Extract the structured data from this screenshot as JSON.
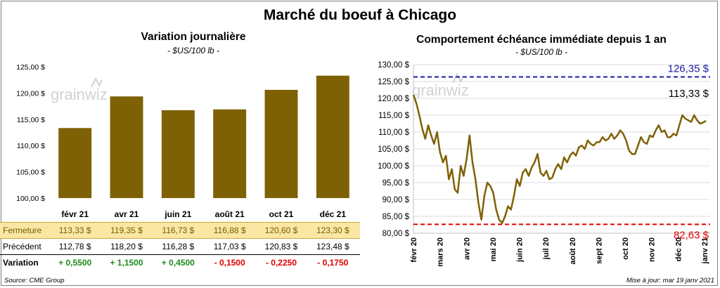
{
  "title": "Marché du boeuf à Chicago",
  "watermark": "grainwiz",
  "colors": {
    "bar": "#7e6105",
    "line": "#7e6105",
    "high": "#1a1aa8",
    "low": "#e00000",
    "up": "#1d8a1d",
    "down": "#e00000"
  },
  "left": {
    "title": "Variation journalière",
    "subtitle": "- $US/100 lb -"
  },
  "right": {
    "title": "Comportement échéance immédiate depuis 1 an",
    "subtitle": "- $US/100 lb -"
  },
  "table": {
    "rows": [
      {
        "label": "Fermeture",
        "cells": [
          "113,33  $",
          "119,35  $",
          "116,73  $",
          "116,88  $",
          "120,60  $",
          "123,30  $"
        ]
      },
      {
        "label": "Précédent",
        "cells": [
          "112,78  $",
          "118,20  $",
          "116,28  $",
          "117,03  $",
          "120,83  $",
          "123,48  $"
        ]
      },
      {
        "label": "Variation",
        "cells": [
          "+ 0,5500",
          "+ 1,1500",
          "+ 0,4500",
          "- 0,1500",
          "- 0,2250",
          "- 0,1750"
        ]
      }
    ]
  },
  "footer": {
    "source": "Source: CME Group",
    "updated": "Mise à jour: mar 19 janv 2021"
  },
  "chart_data": [
    {
      "type": "bar",
      "title": "Variation journalière",
      "subtitle": "- $US/100 lb -",
      "categories": [
        "févr 21",
        "avr 21",
        "juin 21",
        "août 21",
        "oct 21",
        "déc 21"
      ],
      "values": [
        113.33,
        119.35,
        116.73,
        116.88,
        120.6,
        123.3
      ],
      "ylim": [
        100,
        125
      ],
      "yticks": [
        "100,00 $",
        "105,00 $",
        "110,00 $",
        "115,00 $",
        "120,00 $",
        "125,00 $"
      ],
      "grid": false
    },
    {
      "type": "line",
      "title": "Comportement échéance immédiate depuis 1 an",
      "subtitle": "- $US/100 lb -",
      "xlabels": [
        "févr 20",
        "mars 20",
        "avr 20",
        "mai 20",
        "juin 20",
        "juil 20",
        "août 20",
        "sept 20",
        "oct 20",
        "nov 20",
        "déc 20",
        "janv 21"
      ],
      "ylim": [
        80,
        130
      ],
      "yticks": [
        "80,00 $",
        "85,00 $",
        "90,00 $",
        "95,00 $",
        "100,00 $",
        "105,00 $",
        "110,00 $",
        "115,00 $",
        "120,00 $",
        "125,00 $",
        "130,00 $"
      ],
      "grid": true,
      "high": {
        "value": 126.35,
        "label": "126,35 $"
      },
      "low": {
        "value": 82.63,
        "label": "82,63 $"
      },
      "last": {
        "value": 113.33,
        "label": "113,33 $"
      },
      "series_values": [
        121.0,
        118.5,
        115.0,
        111.0,
        108.0,
        112.0,
        109.0,
        106.5,
        110.0,
        104.0,
        101.0,
        103.0,
        96.0,
        99.0,
        93.0,
        92.0,
        100.0,
        97.0,
        102.0,
        109.0,
        101.0,
        96.0,
        89.0,
        84.0,
        91.0,
        95.0,
        94.0,
        92.0,
        87.0,
        84.0,
        83.0,
        85.0,
        88.0,
        87.0,
        91.0,
        96.0,
        94.0,
        98.0,
        99.0,
        97.0,
        99.5,
        101.0,
        103.5,
        98.0,
        97.0,
        98.5,
        96.0,
        96.5,
        99.0,
        100.5,
        99.0,
        102.5,
        101.0,
        103.0,
        104.0,
        103.0,
        105.5,
        106.0,
        105.0,
        107.5,
        106.5,
        106.0,
        107.0,
        107.0,
        108.5,
        107.5,
        108.0,
        109.5,
        108.0,
        109.0,
        110.5,
        109.5,
        107.5,
        104.5,
        103.5,
        103.5,
        106.0,
        108.5,
        107.0,
        106.5,
        109.0,
        108.5,
        110.5,
        112.0,
        110.0,
        110.5,
        108.5,
        108.5,
        109.5,
        109.0,
        112.0,
        115.0,
        114.0,
        113.5,
        113.0,
        115.0,
        113.5,
        112.5,
        112.8,
        113.33
      ]
    }
  ]
}
